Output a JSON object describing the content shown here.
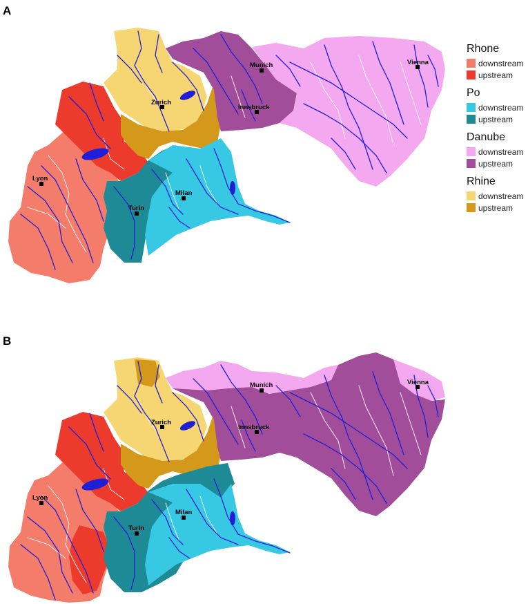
{
  "panels": [
    {
      "id": "A",
      "label": "A"
    },
    {
      "id": "B",
      "label": "B"
    }
  ],
  "cities": [
    "Munich",
    "Vienna",
    "Zurich",
    "Innsbruck",
    "Lyon",
    "Milan",
    "Turin"
  ],
  "legend": {
    "groups": [
      {
        "name": "Rhone",
        "items": [
          {
            "label": "downstream",
            "color": "#f47c6a"
          },
          {
            "label": "upstream",
            "color": "#ec3a2c"
          }
        ]
      },
      {
        "name": "Po",
        "items": [
          {
            "label": "downstream",
            "color": "#37c8e3"
          },
          {
            "label": "upstream",
            "color": "#1e8a96"
          }
        ]
      },
      {
        "name": "Danube",
        "items": [
          {
            "label": "downstream",
            "color": "#f4a8ef"
          },
          {
            "label": "upstream",
            "color": "#a24d9a"
          }
        ]
      },
      {
        "name": "Rhine",
        "items": [
          {
            "label": "downstream",
            "color": "#f6d672"
          },
          {
            "label": "upstream",
            "color": "#d4981a"
          }
        ]
      }
    ]
  },
  "colors": {
    "river": "#1f1fd8",
    "boundary": "#ffffff"
  }
}
